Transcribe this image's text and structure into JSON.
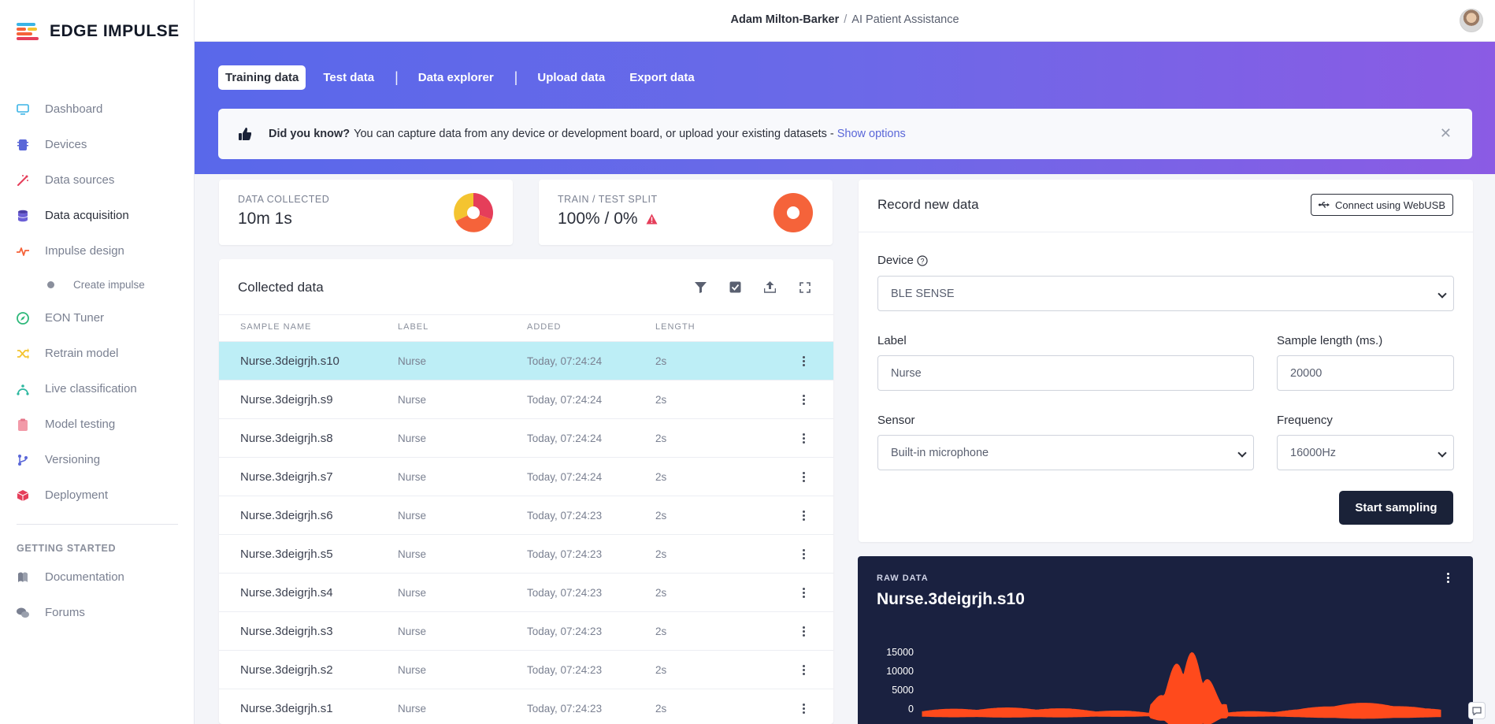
{
  "brand": {
    "name": "EDGE IMPULSE"
  },
  "header": {
    "user": "Adam Milton-Barker",
    "separator": "/",
    "project": "AI Patient Assistance"
  },
  "sidebar": {
    "items": [
      {
        "label": "Dashboard",
        "icon": "monitor-icon"
      },
      {
        "label": "Devices",
        "icon": "chip-icon"
      },
      {
        "label": "Data sources",
        "icon": "wand-icon"
      },
      {
        "label": "Data acquisition",
        "icon": "database-icon"
      },
      {
        "label": "Impulse design",
        "icon": "pulse-icon"
      },
      {
        "label": "Create impulse",
        "icon": "dot-icon"
      },
      {
        "label": "EON Tuner",
        "icon": "compass-icon"
      },
      {
        "label": "Retrain model",
        "icon": "shuffle-icon"
      },
      {
        "label": "Live classification",
        "icon": "curve-icon"
      },
      {
        "label": "Model testing",
        "icon": "clipboard-icon"
      },
      {
        "label": "Versioning",
        "icon": "branch-icon"
      },
      {
        "label": "Deployment",
        "icon": "box-icon"
      }
    ],
    "section_title": "GETTING STARTED",
    "getting_started": [
      {
        "label": "Documentation",
        "icon": "book-icon"
      },
      {
        "label": "Forums",
        "icon": "chat-icon"
      }
    ]
  },
  "tabs": [
    "Training data",
    "Test data",
    "Data explorer",
    "Upload data",
    "Export data"
  ],
  "tip": {
    "bold": "Did you know?",
    "text": "You can capture data from any device or development board, or upload your existing datasets -",
    "link": "Show options"
  },
  "stats": {
    "collected_label": "DATA COLLECTED",
    "collected_value": "10m 1s",
    "split_label": "TRAIN / TEST SPLIT",
    "split_value": "100% / 0%"
  },
  "collected": {
    "title": "Collected data",
    "columns": [
      "SAMPLE NAME",
      "LABEL",
      "ADDED",
      "LENGTH"
    ],
    "rows": [
      {
        "name": "Nurse.3deigrjh.s10",
        "label": "Nurse",
        "added": "Today, 07:24:24",
        "length": "2s"
      },
      {
        "name": "Nurse.3deigrjh.s9",
        "label": "Nurse",
        "added": "Today, 07:24:24",
        "length": "2s"
      },
      {
        "name": "Nurse.3deigrjh.s8",
        "label": "Nurse",
        "added": "Today, 07:24:24",
        "length": "2s"
      },
      {
        "name": "Nurse.3deigrjh.s7",
        "label": "Nurse",
        "added": "Today, 07:24:24",
        "length": "2s"
      },
      {
        "name": "Nurse.3deigrjh.s6",
        "label": "Nurse",
        "added": "Today, 07:24:23",
        "length": "2s"
      },
      {
        "name": "Nurse.3deigrjh.s5",
        "label": "Nurse",
        "added": "Today, 07:24:23",
        "length": "2s"
      },
      {
        "name": "Nurse.3deigrjh.s4",
        "label": "Nurse",
        "added": "Today, 07:24:23",
        "length": "2s"
      },
      {
        "name": "Nurse.3deigrjh.s3",
        "label": "Nurse",
        "added": "Today, 07:24:23",
        "length": "2s"
      },
      {
        "name": "Nurse.3deigrjh.s2",
        "label": "Nurse",
        "added": "Today, 07:24:23",
        "length": "2s"
      },
      {
        "name": "Nurse.3deigrjh.s1",
        "label": "Nurse",
        "added": "Today, 07:24:23",
        "length": "2s"
      }
    ]
  },
  "record": {
    "title": "Record new data",
    "webusb_label": "Connect using WebUSB",
    "device_label": "Device",
    "device_value": "BLE SENSE",
    "label_label": "Label",
    "label_value": "Nurse",
    "length_label": "Sample length (ms.)",
    "length_value": "20000",
    "sensor_label": "Sensor",
    "sensor_value": "Built-in microphone",
    "frequency_label": "Frequency",
    "frequency_value": "16000Hz",
    "start_label": "Start sampling"
  },
  "raw": {
    "label": "RAW DATA",
    "title": "Nurse.3deigrjh.s10",
    "y_ticks": [
      "15000",
      "10000",
      "5000",
      "0"
    ],
    "series_color": "#ff4a1c"
  },
  "colors": {
    "accent": "#5a67d8",
    "selected_row": "#bdeef6",
    "warning": "#e53e5a",
    "pie_split": "#f5633a"
  }
}
